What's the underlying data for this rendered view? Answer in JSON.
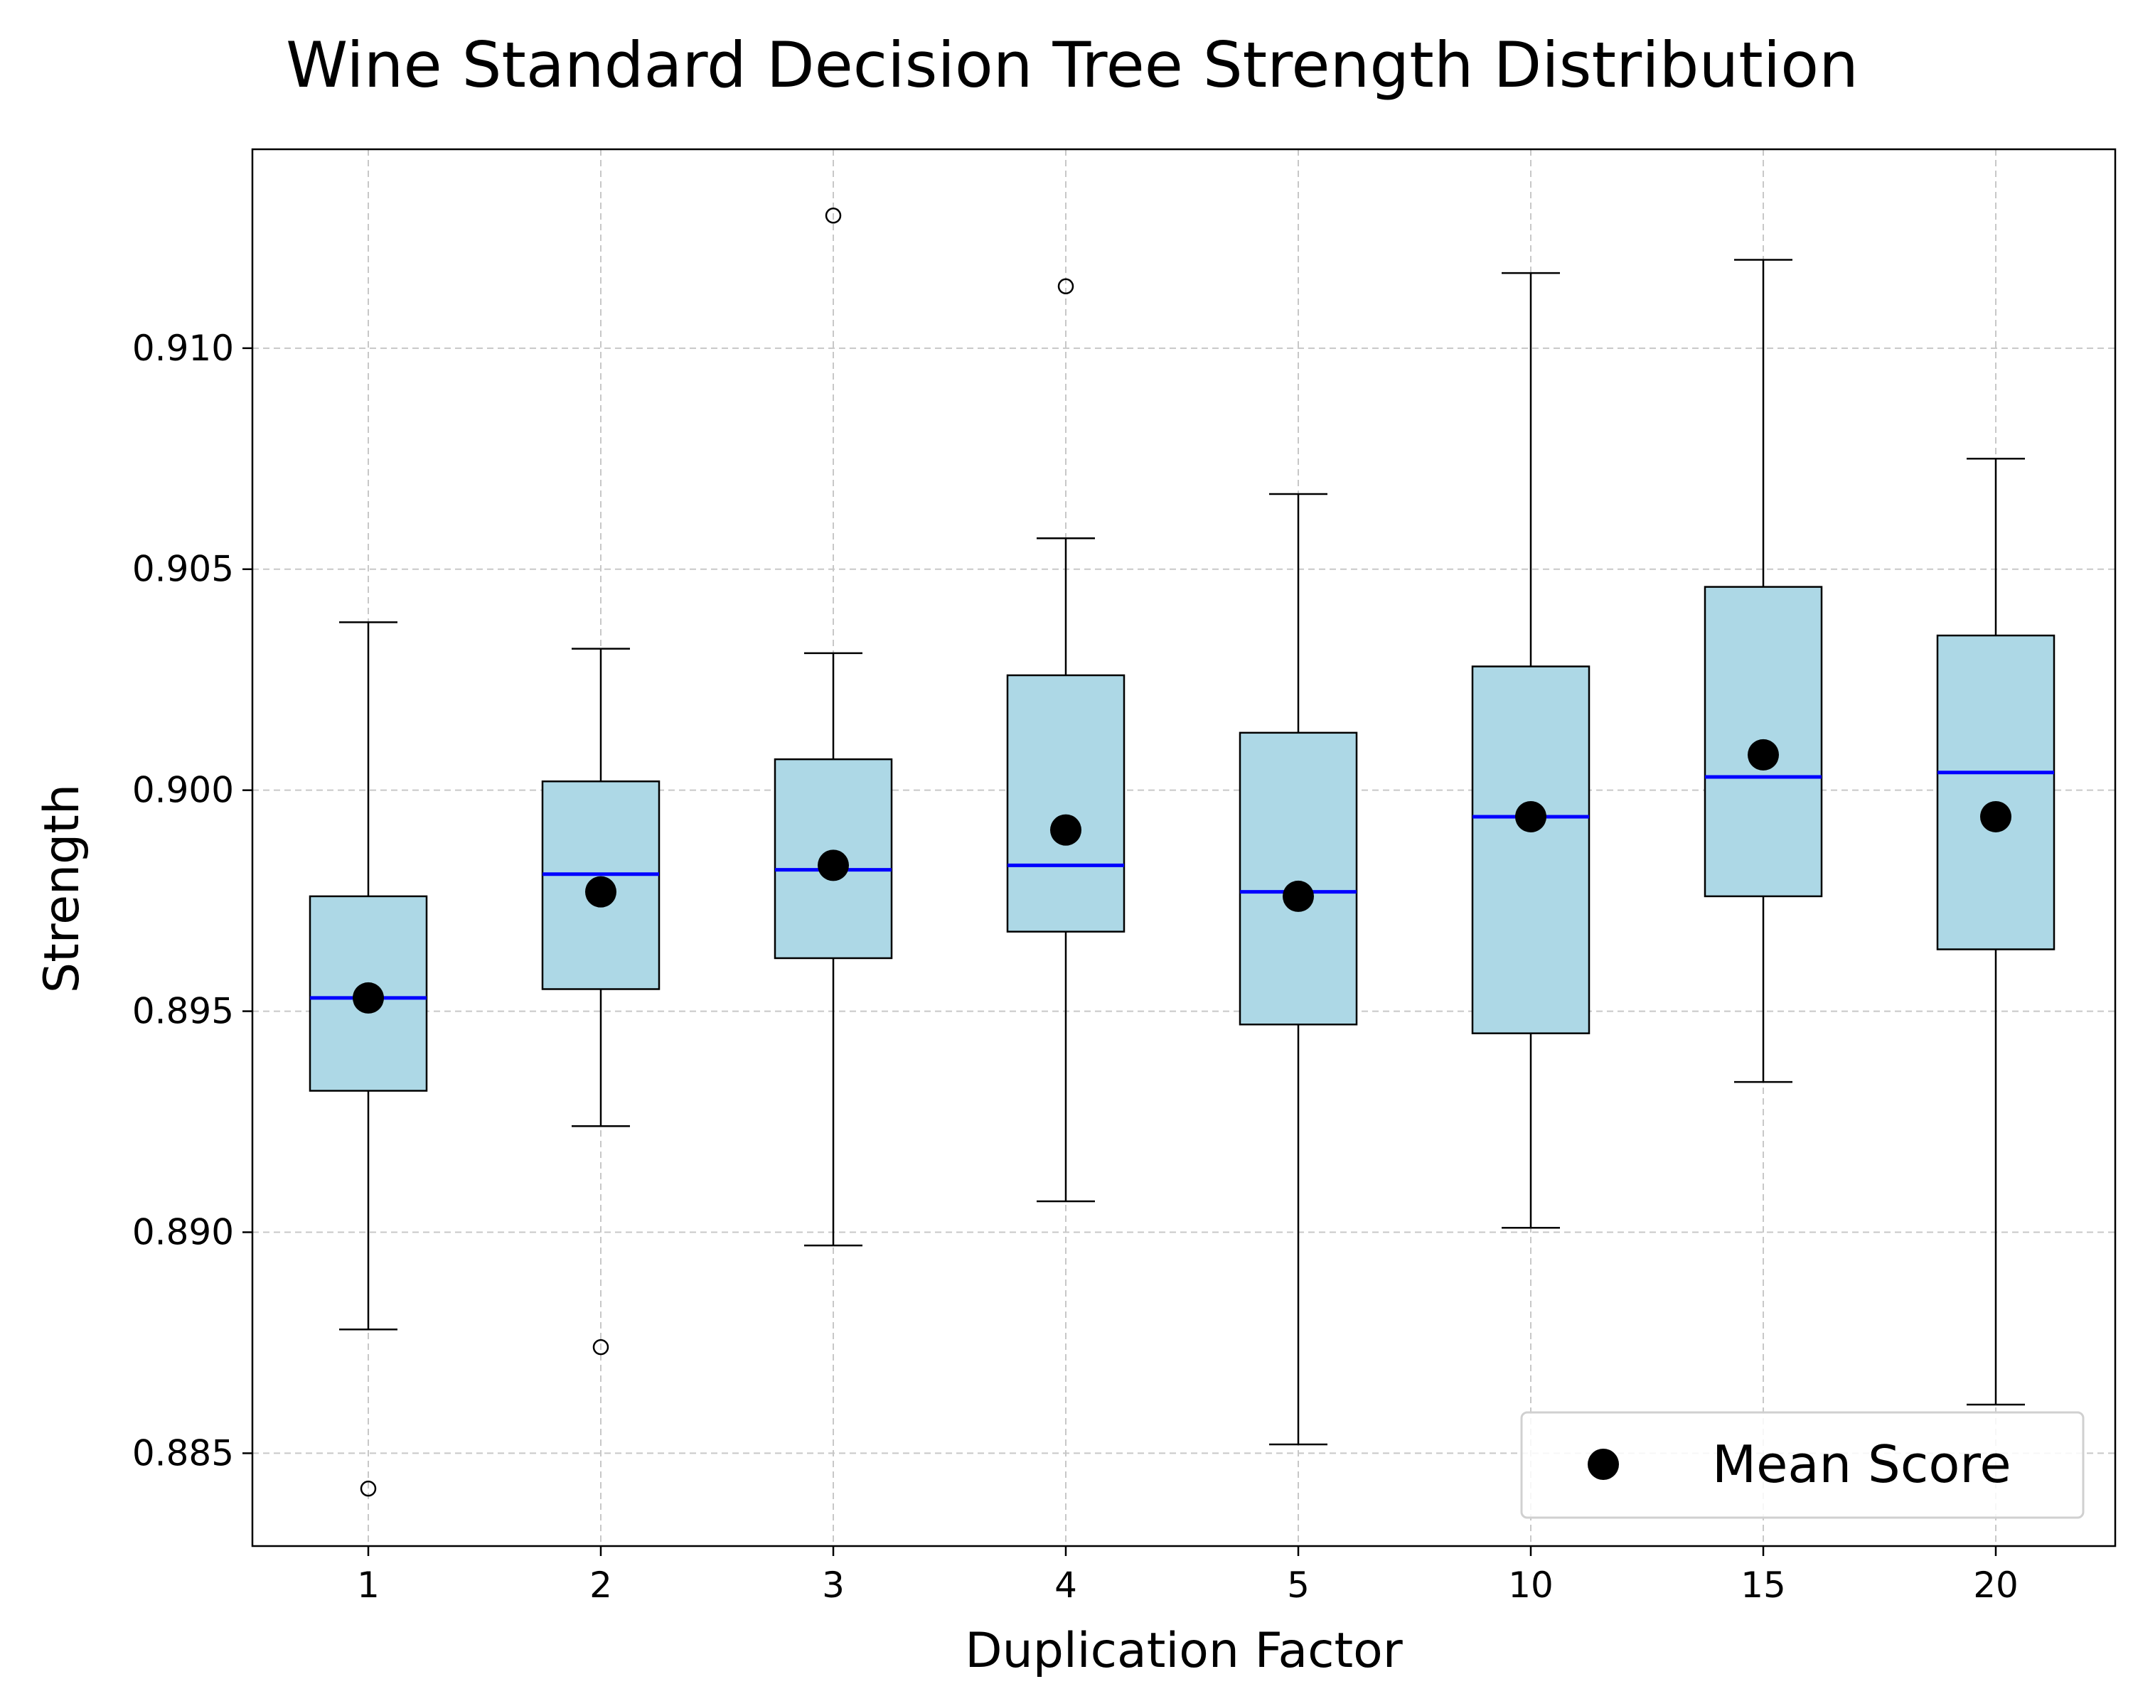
{
  "chart_data": {
    "type": "box",
    "title": "Wine Standard Decision Tree Strength Distribution",
    "xlabel": "Duplication Factor",
    "ylabel": "Strength",
    "ylim": [
      0.8829,
      0.9145
    ],
    "yticks": [
      "0.885",
      "0.890",
      "0.895",
      "0.900",
      "0.905",
      "0.910"
    ],
    "grid": true,
    "legend": {
      "position": "bottom-right",
      "entries": [
        "Mean Score"
      ]
    },
    "colors": {
      "box_fill": "#add8e6",
      "median": "#0000ff",
      "mean": "#000000",
      "grid": "#c8c8c8"
    },
    "categories": [
      "1",
      "2",
      "3",
      "4",
      "5",
      "10",
      "15",
      "20"
    ],
    "boxes": [
      {
        "category": "1",
        "whisker_low": 0.8878,
        "q1": 0.8932,
        "median": 0.8953,
        "q3": 0.8976,
        "whisker_high": 0.9038,
        "mean": 0.8953,
        "outliers": [
          0.8842
        ]
      },
      {
        "category": "2",
        "whisker_low": 0.8924,
        "q1": 0.8955,
        "median": 0.8981,
        "q3": 0.9002,
        "whisker_high": 0.9032,
        "mean": 0.8977,
        "outliers": [
          0.8874
        ]
      },
      {
        "category": "3",
        "whisker_low": 0.8897,
        "q1": 0.8962,
        "median": 0.8982,
        "q3": 0.9007,
        "whisker_high": 0.9031,
        "mean": 0.8983,
        "outliers": [
          0.913
        ]
      },
      {
        "category": "4",
        "whisker_low": 0.8907,
        "q1": 0.8968,
        "median": 0.8983,
        "q3": 0.9026,
        "whisker_high": 0.9057,
        "mean": 0.8991,
        "outliers": [
          0.9114
        ]
      },
      {
        "category": "5",
        "whisker_low": 0.8852,
        "q1": 0.8947,
        "median": 0.8977,
        "q3": 0.9013,
        "whisker_high": 0.9067,
        "mean": 0.8976,
        "outliers": []
      },
      {
        "category": "10",
        "whisker_low": 0.8901,
        "q1": 0.8945,
        "median": 0.8994,
        "q3": 0.9028,
        "whisker_high": 0.9117,
        "mean": 0.8994,
        "outliers": []
      },
      {
        "category": "15",
        "whisker_low": 0.8934,
        "q1": 0.8976,
        "median": 0.9003,
        "q3": 0.9046,
        "whisker_high": 0.912,
        "mean": 0.9008,
        "outliers": []
      },
      {
        "category": "20",
        "whisker_low": 0.8861,
        "q1": 0.8964,
        "median": 0.9004,
        "q3": 0.9035,
        "whisker_high": 0.9075,
        "mean": 0.8994,
        "outliers": []
      }
    ]
  }
}
